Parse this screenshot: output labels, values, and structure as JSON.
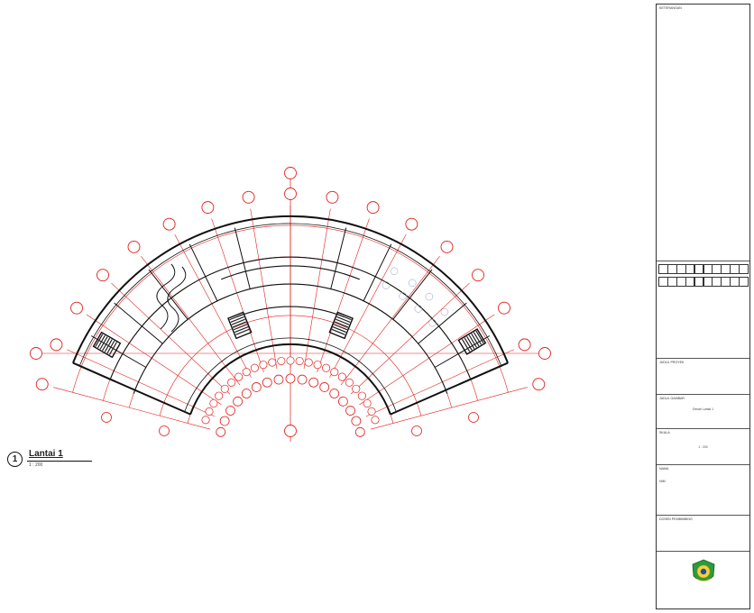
{
  "drawing": {
    "sheet_number": "1",
    "sheet_title": "Lantai 1",
    "sheet_scale": "1 : 200",
    "colors": {
      "grid": "#e0201c",
      "walls": "#111111",
      "hatch": "#222222"
    }
  },
  "title_block": {
    "keterangan_label": "KETERANGAN",
    "revision_cells_top": [
      "",
      "",
      "",
      "",
      "",
      "",
      "",
      "",
      "",
      ""
    ],
    "revision_cells_bottom": [
      "",
      "",
      "",
      "",
      "",
      "",
      "",
      "",
      "",
      ""
    ],
    "info_lines": [
      "",
      "",
      "",
      "",
      "",
      "",
      "",
      "",
      ""
    ],
    "judul_proyek_label": "JUDUL PROYEK",
    "judul_proyek_lines": [
      "",
      ""
    ],
    "judul_gambar_label": "JUDUL GAMBAR",
    "judul_gambar_value": "Denah Lantai 1",
    "skala_label": "SKALA",
    "skala_value": "1 : 200",
    "nama_label": "NAMA",
    "nama_value": "",
    "nim_label": "NIM",
    "nim_value": "",
    "dosen_label": "DOSEN PEMBIMBING",
    "dosen_value": "",
    "logo": "university-seal",
    "footer_lines": [
      "",
      "",
      ""
    ]
  }
}
